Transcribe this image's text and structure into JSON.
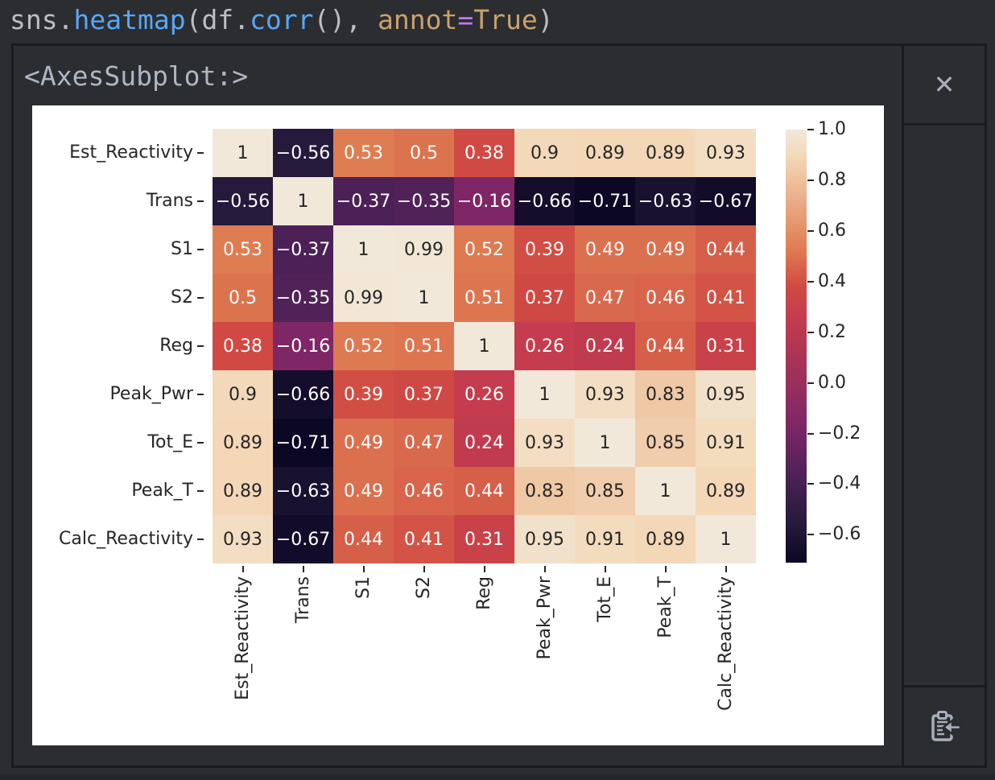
{
  "editor": {
    "code_tokens": [
      {
        "text": "sns",
        "color": "#BCBEC4"
      },
      {
        "text": ".",
        "color": "#BCBEC4"
      },
      {
        "text": "heatmap",
        "color": "#57A8F5"
      },
      {
        "text": "(",
        "color": "#BCBEC4"
      },
      {
        "text": "df",
        "color": "#BCBEC4"
      },
      {
        "text": ".",
        "color": "#BCBEC4"
      },
      {
        "text": "corr",
        "color": "#57A8F5"
      },
      {
        "text": "(), ",
        "color": "#BCBEC4"
      },
      {
        "text": "annot",
        "color": "#C9A26A"
      },
      {
        "text": "=",
        "color": "#BD7BE8"
      },
      {
        "text": "True",
        "color": "#C9A26A"
      },
      {
        "text": ")",
        "color": "#BCBEC4"
      }
    ]
  },
  "output_panel": {
    "repr_text": "<AxesSubplot:>",
    "close_icon": "✕",
    "clipboard_icon_name": "paste-into-clipboard"
  },
  "chart_data": {
    "type": "heatmap",
    "title": "",
    "labels": [
      "Est_Reactivity",
      "Trans",
      "S1",
      "S2",
      "Reg",
      "Peak_Pwr",
      "Tot_E",
      "Peak_T",
      "Calc_Reactivity"
    ],
    "matrix": [
      [
        1,
        -0.56,
        0.53,
        0.5,
        0.38,
        0.9,
        0.89,
        0.89,
        0.93
      ],
      [
        -0.56,
        1,
        -0.37,
        -0.35,
        -0.16,
        -0.66,
        -0.71,
        -0.63,
        -0.67
      ],
      [
        0.53,
        -0.37,
        1,
        0.99,
        0.52,
        0.39,
        0.49,
        0.49,
        0.44
      ],
      [
        0.5,
        -0.35,
        0.99,
        1,
        0.51,
        0.37,
        0.47,
        0.46,
        0.41
      ],
      [
        0.38,
        -0.16,
        0.52,
        0.51,
        1,
        0.26,
        0.24,
        0.44,
        0.31
      ],
      [
        0.9,
        -0.66,
        0.39,
        0.37,
        0.26,
        1,
        0.93,
        0.83,
        0.95
      ],
      [
        0.89,
        -0.71,
        0.49,
        0.47,
        0.24,
        0.93,
        1,
        0.85,
        0.91
      ],
      [
        0.89,
        -0.63,
        0.49,
        0.46,
        0.44,
        0.83,
        0.85,
        1,
        0.89
      ],
      [
        0.93,
        -0.67,
        0.44,
        0.41,
        0.31,
        0.95,
        0.91,
        0.89,
        1
      ]
    ],
    "annot": true,
    "vmin": -0.71,
    "vmax": 1.0,
    "colorbar_ticks": [
      1.0,
      0.8,
      0.6,
      0.4,
      0.2,
      0.0,
      -0.2,
      -0.4,
      -0.6
    ],
    "legend_position": "right",
    "grid": false,
    "colormap": {
      "name": "rocket",
      "stops": [
        [
          0.0,
          "#0B0724"
        ],
        [
          0.09,
          "#261A3C"
        ],
        [
          0.2,
          "#4C2157"
        ],
        [
          0.32,
          "#7F2766"
        ],
        [
          0.567,
          "#C43C4D"
        ],
        [
          0.637,
          "#D04A43"
        ],
        [
          0.725,
          "#DF7D52"
        ],
        [
          0.94,
          "#F3D9B9"
        ],
        [
          1.0,
          "#F2E8DA"
        ]
      ]
    },
    "annotation_text_colors": {
      "light_cells": "#262626",
      "dark_cells": "#FFFFFF"
    }
  },
  "colors": {
    "background": "#2B2D31",
    "panel_border": "#191B1F",
    "plot_background": "#FFFFFF",
    "repr_text": "#AEB6C2",
    "icon": "#A8AEBA",
    "axis_text": "#262626"
  }
}
